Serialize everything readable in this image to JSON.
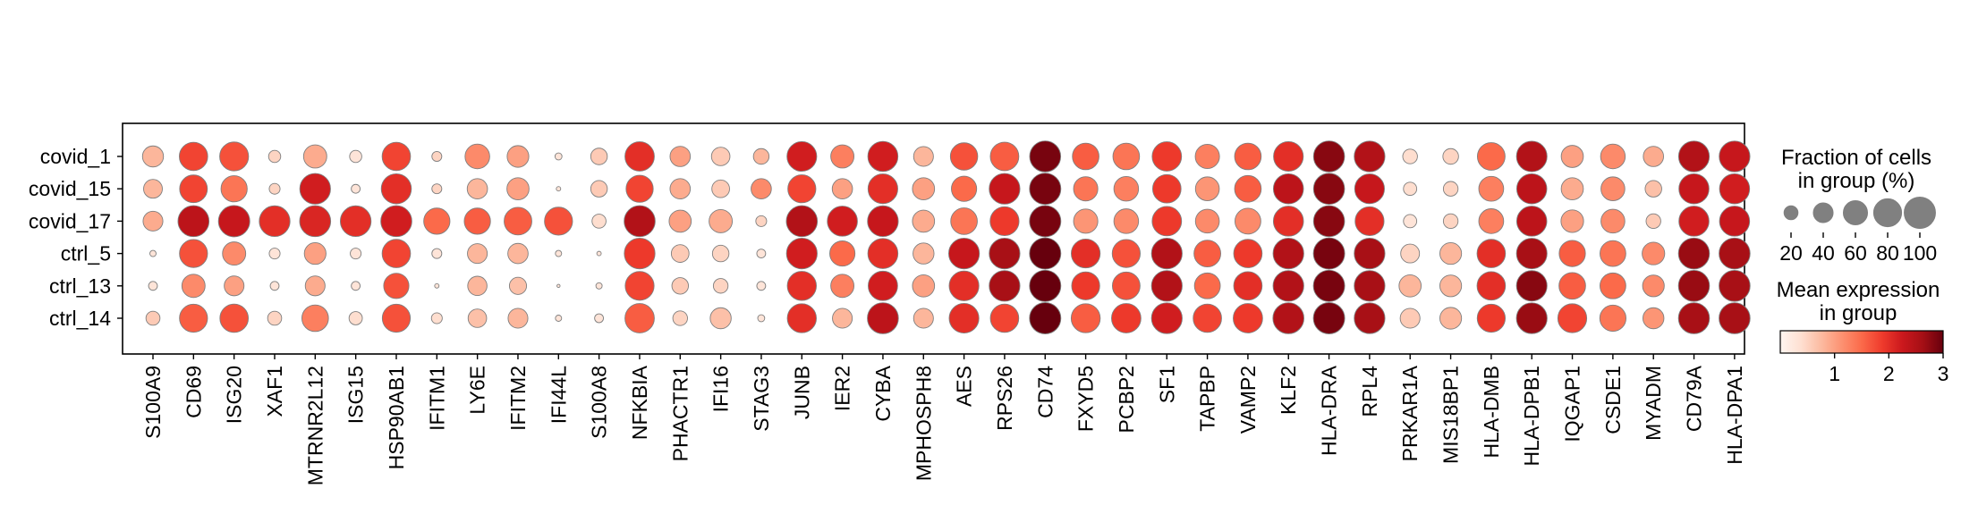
{
  "chart_data": {
    "type": "dotplot",
    "groups": [
      "covid_1",
      "covid_15",
      "covid_17",
      "ctrl_5",
      "ctrl_13",
      "ctrl_14"
    ],
    "genes": [
      "S100A9",
      "CD69",
      "ISG20",
      "XAF1",
      "MTRNR2L12",
      "ISG15",
      "HSP90AB1",
      "IFITM1",
      "LY6E",
      "IFITM2",
      "IFI44L",
      "S100A8",
      "NFKBIA",
      "PHACTR1",
      "IFI16",
      "STAG3",
      "JUNB",
      "IER2",
      "CYBA",
      "MPHOSPH8",
      "AES",
      "RPS26",
      "CD74",
      "FXYD5",
      "PCBP2",
      "SF1",
      "TAPBP",
      "VAMP2",
      "KLF2",
      "HLA-DRA",
      "RPL4",
      "PRKAR1A",
      "MIS18BP1",
      "HLA-DMB",
      "HLA-DPB1",
      "IQGAP1",
      "CSDE1",
      "MYADM",
      "CD79A",
      "HLA-DPA1"
    ],
    "fraction_pct": [
      [
        45,
        82,
        85,
        15,
        55,
        15,
        82,
        10,
        62,
        48,
        5,
        28,
        88,
        42,
        35,
        25,
        90,
        55,
        92,
        40,
        76,
        83,
        98,
        72,
        72,
        88,
        60,
        72,
        90,
        98,
        96,
        22,
        25,
        78,
        95,
        50,
        62,
        42,
        96,
        96
      ],
      [
        36,
        78,
        70,
        12,
        96,
        8,
        92,
        10,
        42,
        50,
        2,
        28,
        75,
        42,
        32,
        42,
        80,
        42,
        90,
        50,
        65,
        96,
        100,
        60,
        62,
        82,
        58,
        72,
        92,
        98,
        90,
        18,
        22,
        63,
        92,
        50,
        58,
        28,
        92,
        92
      ],
      [
        40,
        98,
        100,
        96,
        98,
        96,
        98,
        70,
        70,
        78,
        80,
        20,
        98,
        50,
        55,
        12,
        98,
        92,
        96,
        50,
        72,
        85,
        100,
        60,
        62,
        88,
        58,
        68,
        92,
        98,
        85,
        18,
        22,
        63,
        92,
        52,
        58,
        22,
        92,
        92
      ],
      [
        4,
        80,
        55,
        12,
        48,
        12,
        82,
        10,
        40,
        42,
        4,
        2,
        96,
        32,
        28,
        8,
        96,
        65,
        92,
        45,
        96,
        96,
        100,
        85,
        80,
        96,
        73,
        82,
        96,
        100,
        96,
        36,
        48,
        82,
        95,
        70,
        68,
        52,
        98,
        98
      ],
      [
        8,
        55,
        40,
        8,
        40,
        8,
        65,
        2,
        38,
        30,
        1,
        4,
        85,
        28,
        22,
        8,
        86,
        55,
        88,
        50,
        90,
        96,
        100,
        80,
        78,
        96,
        68,
        82,
        96,
        100,
        96,
        50,
        48,
        82,
        95,
        72,
        68,
        48,
        98,
        98
      ],
      [
        20,
        80,
        82,
        20,
        72,
        18,
        80,
        12,
        35,
        40,
        4,
        8,
        88,
        22,
        45,
        5,
        86,
        40,
        98,
        40,
        90,
        82,
        100,
        86,
        88,
        96,
        82,
        88,
        98,
        100,
        96,
        40,
        48,
        80,
        96,
        85,
        70,
        45,
        98,
        98
      ]
    ],
    "mean_expression": [
      [
        0.8,
        1.8,
        1.7,
        0.5,
        0.9,
        0.3,
        1.8,
        0.5,
        1.2,
        1.0,
        0.3,
        0.6,
        2.0,
        1.0,
        0.6,
        0.8,
        2.2,
        1.3,
        2.2,
        0.8,
        1.7,
        1.6,
        2.9,
        1.6,
        1.4,
        1.9,
        1.3,
        1.6,
        2.0,
        2.8,
        2.5,
        0.4,
        0.5,
        1.5,
        2.5,
        1.0,
        1.2,
        0.9,
        2.5,
        2.3
      ],
      [
        0.8,
        1.8,
        1.4,
        0.5,
        2.2,
        0.3,
        2.0,
        0.5,
        0.8,
        1.0,
        0.3,
        0.6,
        1.8,
        0.9,
        0.6,
        1.2,
        1.8,
        1.0,
        2.0,
        1.0,
        1.5,
        2.3,
        2.9,
        1.4,
        1.3,
        1.9,
        1.1,
        1.6,
        2.4,
        2.8,
        2.3,
        0.4,
        0.5,
        1.3,
        2.4,
        0.9,
        1.2,
        0.7,
        2.3,
        2.2
      ],
      [
        0.9,
        2.4,
        2.3,
        2.0,
        2.1,
        2.0,
        2.2,
        1.5,
        1.6,
        1.6,
        1.7,
        0.4,
        2.5,
        1.0,
        0.9,
        0.5,
        2.5,
        2.2,
        2.3,
        0.9,
        1.4,
        1.9,
        2.9,
        1.1,
        1.2,
        1.9,
        1.2,
        1.2,
        2.0,
        2.8,
        2.0,
        0.3,
        0.5,
        1.3,
        2.4,
        1.0,
        1.2,
        0.6,
        2.2,
        2.3
      ],
      [
        0.3,
        1.7,
        1.2,
        0.3,
        1.0,
        0.3,
        1.8,
        0.3,
        0.8,
        0.8,
        0.3,
        0.3,
        1.9,
        0.6,
        0.5,
        0.3,
        2.2,
        1.5,
        2.0,
        0.8,
        2.3,
        2.6,
        3.0,
        2.0,
        1.7,
        2.5,
        1.6,
        1.9,
        2.5,
        2.9,
        2.6,
        0.5,
        0.8,
        2.0,
        2.6,
        1.6,
        1.4,
        1.2,
        2.7,
        2.6
      ],
      [
        0.3,
        1.2,
        1.0,
        0.3,
        0.9,
        0.3,
        1.7,
        0.3,
        0.8,
        0.7,
        0.3,
        0.3,
        1.8,
        0.6,
        0.5,
        0.3,
        2.0,
        1.3,
        2.2,
        1.0,
        2.0,
        2.6,
        3.0,
        1.9,
        1.7,
        2.5,
        1.5,
        2.0,
        2.5,
        2.9,
        2.6,
        0.8,
        0.8,
        2.0,
        2.8,
        1.6,
        1.5,
        1.2,
        2.7,
        2.6
      ],
      [
        0.6,
        1.6,
        1.7,
        0.5,
        1.3,
        0.4,
        1.7,
        0.4,
        0.7,
        0.8,
        0.3,
        0.3,
        1.6,
        0.5,
        0.7,
        0.3,
        2.0,
        0.8,
        2.4,
        0.8,
        2.0,
        1.8,
        3.0,
        1.6,
        1.9,
        2.2,
        1.8,
        1.9,
        2.5,
        2.9,
        2.6,
        0.6,
        0.8,
        1.9,
        2.7,
        1.8,
        1.4,
        1.1,
        2.6,
        2.6
      ]
    ],
    "size_legend": {
      "title": [
        "Fraction of cells",
        "in group (%)"
      ],
      "values": [
        20,
        40,
        60,
        80,
        100
      ],
      "labels": [
        "20",
        "40",
        "60",
        "80",
        "100"
      ]
    },
    "color_legend": {
      "title": [
        "Mean expression",
        "in group"
      ],
      "range": [
        0,
        3
      ],
      "ticks": [
        1,
        2,
        3
      ],
      "tick_labels": [
        "1",
        "2",
        "3"
      ],
      "colormap": "Reds",
      "stops": [
        "#fff5f0",
        "#fee0d2",
        "#fcbba1",
        "#fc9272",
        "#fb6a4a",
        "#ef3b2c",
        "#cb181d",
        "#a50f15",
        "#67000d"
      ]
    },
    "dot_edge_color": "#7f7f7f",
    "grid": false
  }
}
